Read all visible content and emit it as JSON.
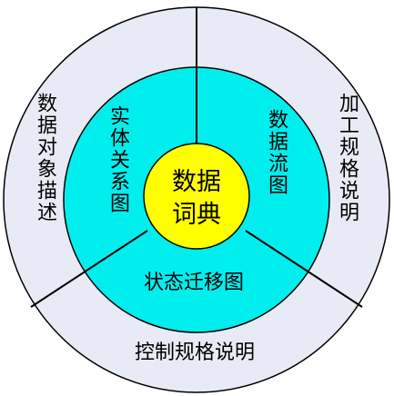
{
  "center": {
    "line1": "数据",
    "line2": "词典"
  },
  "middle_ring": {
    "left": "实体关系图",
    "right": "数据流图",
    "bottom": "状态迁移图"
  },
  "outer_ring": {
    "left": "数据对象描述",
    "right": "加工规格说明",
    "bottom": "控制规格说明"
  },
  "colors": {
    "outer_fill": "#e8ebf5",
    "middle_fill": "#00eeee",
    "center_fill": "#ffff00",
    "stroke": "#000000",
    "background": "#ffffff"
  }
}
